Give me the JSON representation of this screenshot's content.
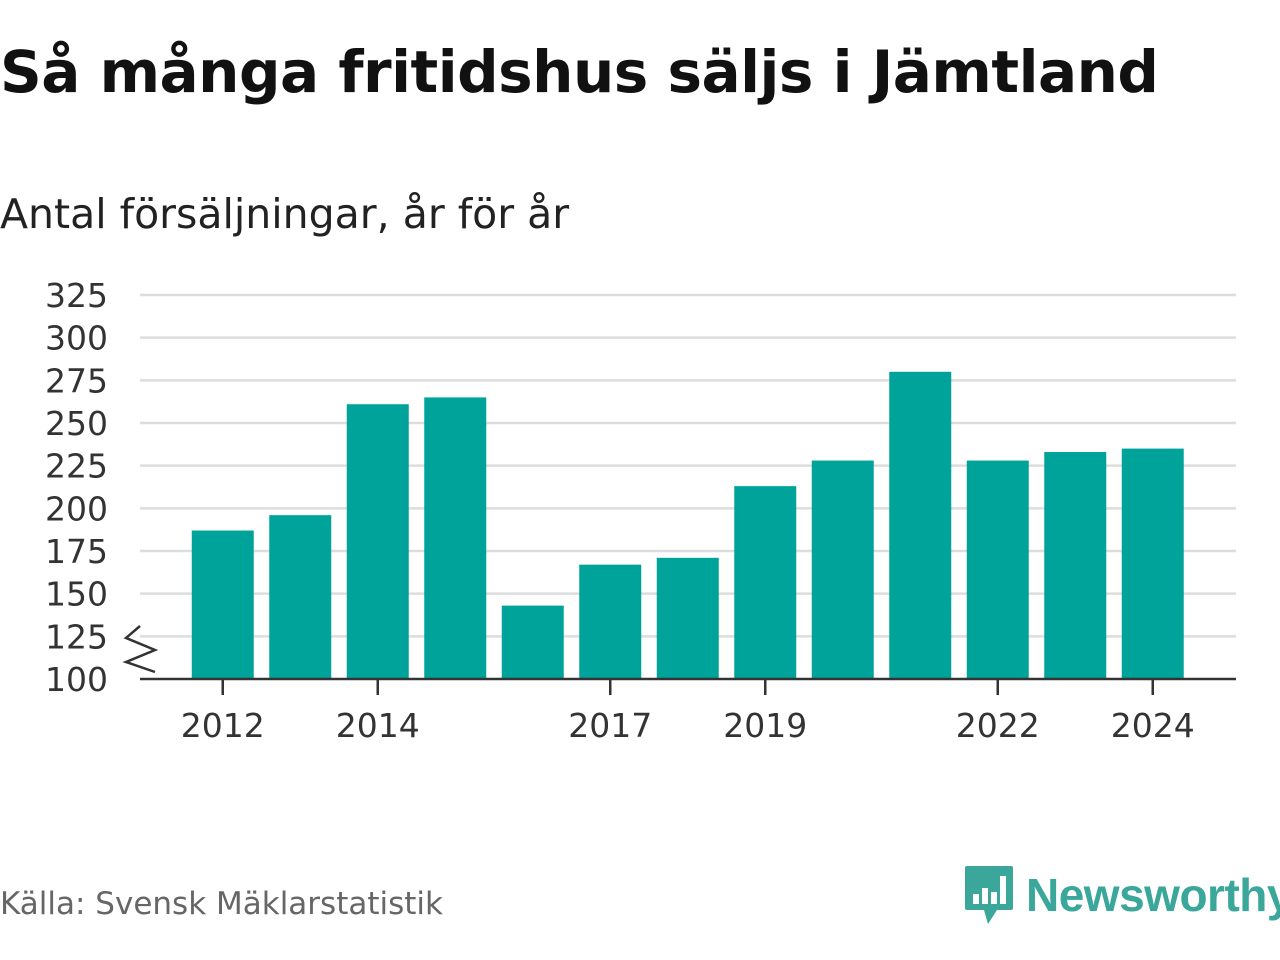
{
  "title": "Så många fritidshus säljs i Jämtland",
  "subtitle": "Antal försäljningar, år för år",
  "source": "Källa: Svensk Mäklarstatistik",
  "logo": {
    "name": "Newsworthy",
    "icon": "newsworthy-bar-chart-icon",
    "color": "#3aa79a"
  },
  "colors": {
    "bar": "#00a39a",
    "grid": "#dddddd",
    "axis": "#333333"
  },
  "chart_data": {
    "type": "bar",
    "x": [
      2012,
      2013,
      2014,
      2015,
      2016,
      2017,
      2018,
      2019,
      2020,
      2021,
      2022,
      2023,
      2024
    ],
    "values": [
      187,
      196,
      261,
      265,
      143,
      167,
      171,
      213,
      228,
      280,
      228,
      233,
      235
    ],
    "x_tick_labels": [
      "2012",
      "2014",
      "2017",
      "2019",
      "2022",
      "2024"
    ],
    "y_ticks": [
      100,
      125,
      150,
      175,
      200,
      225,
      250,
      275,
      300,
      325
    ],
    "ylim": [
      100,
      325
    ],
    "axis_break": true,
    "grid": true,
    "legend": false
  }
}
